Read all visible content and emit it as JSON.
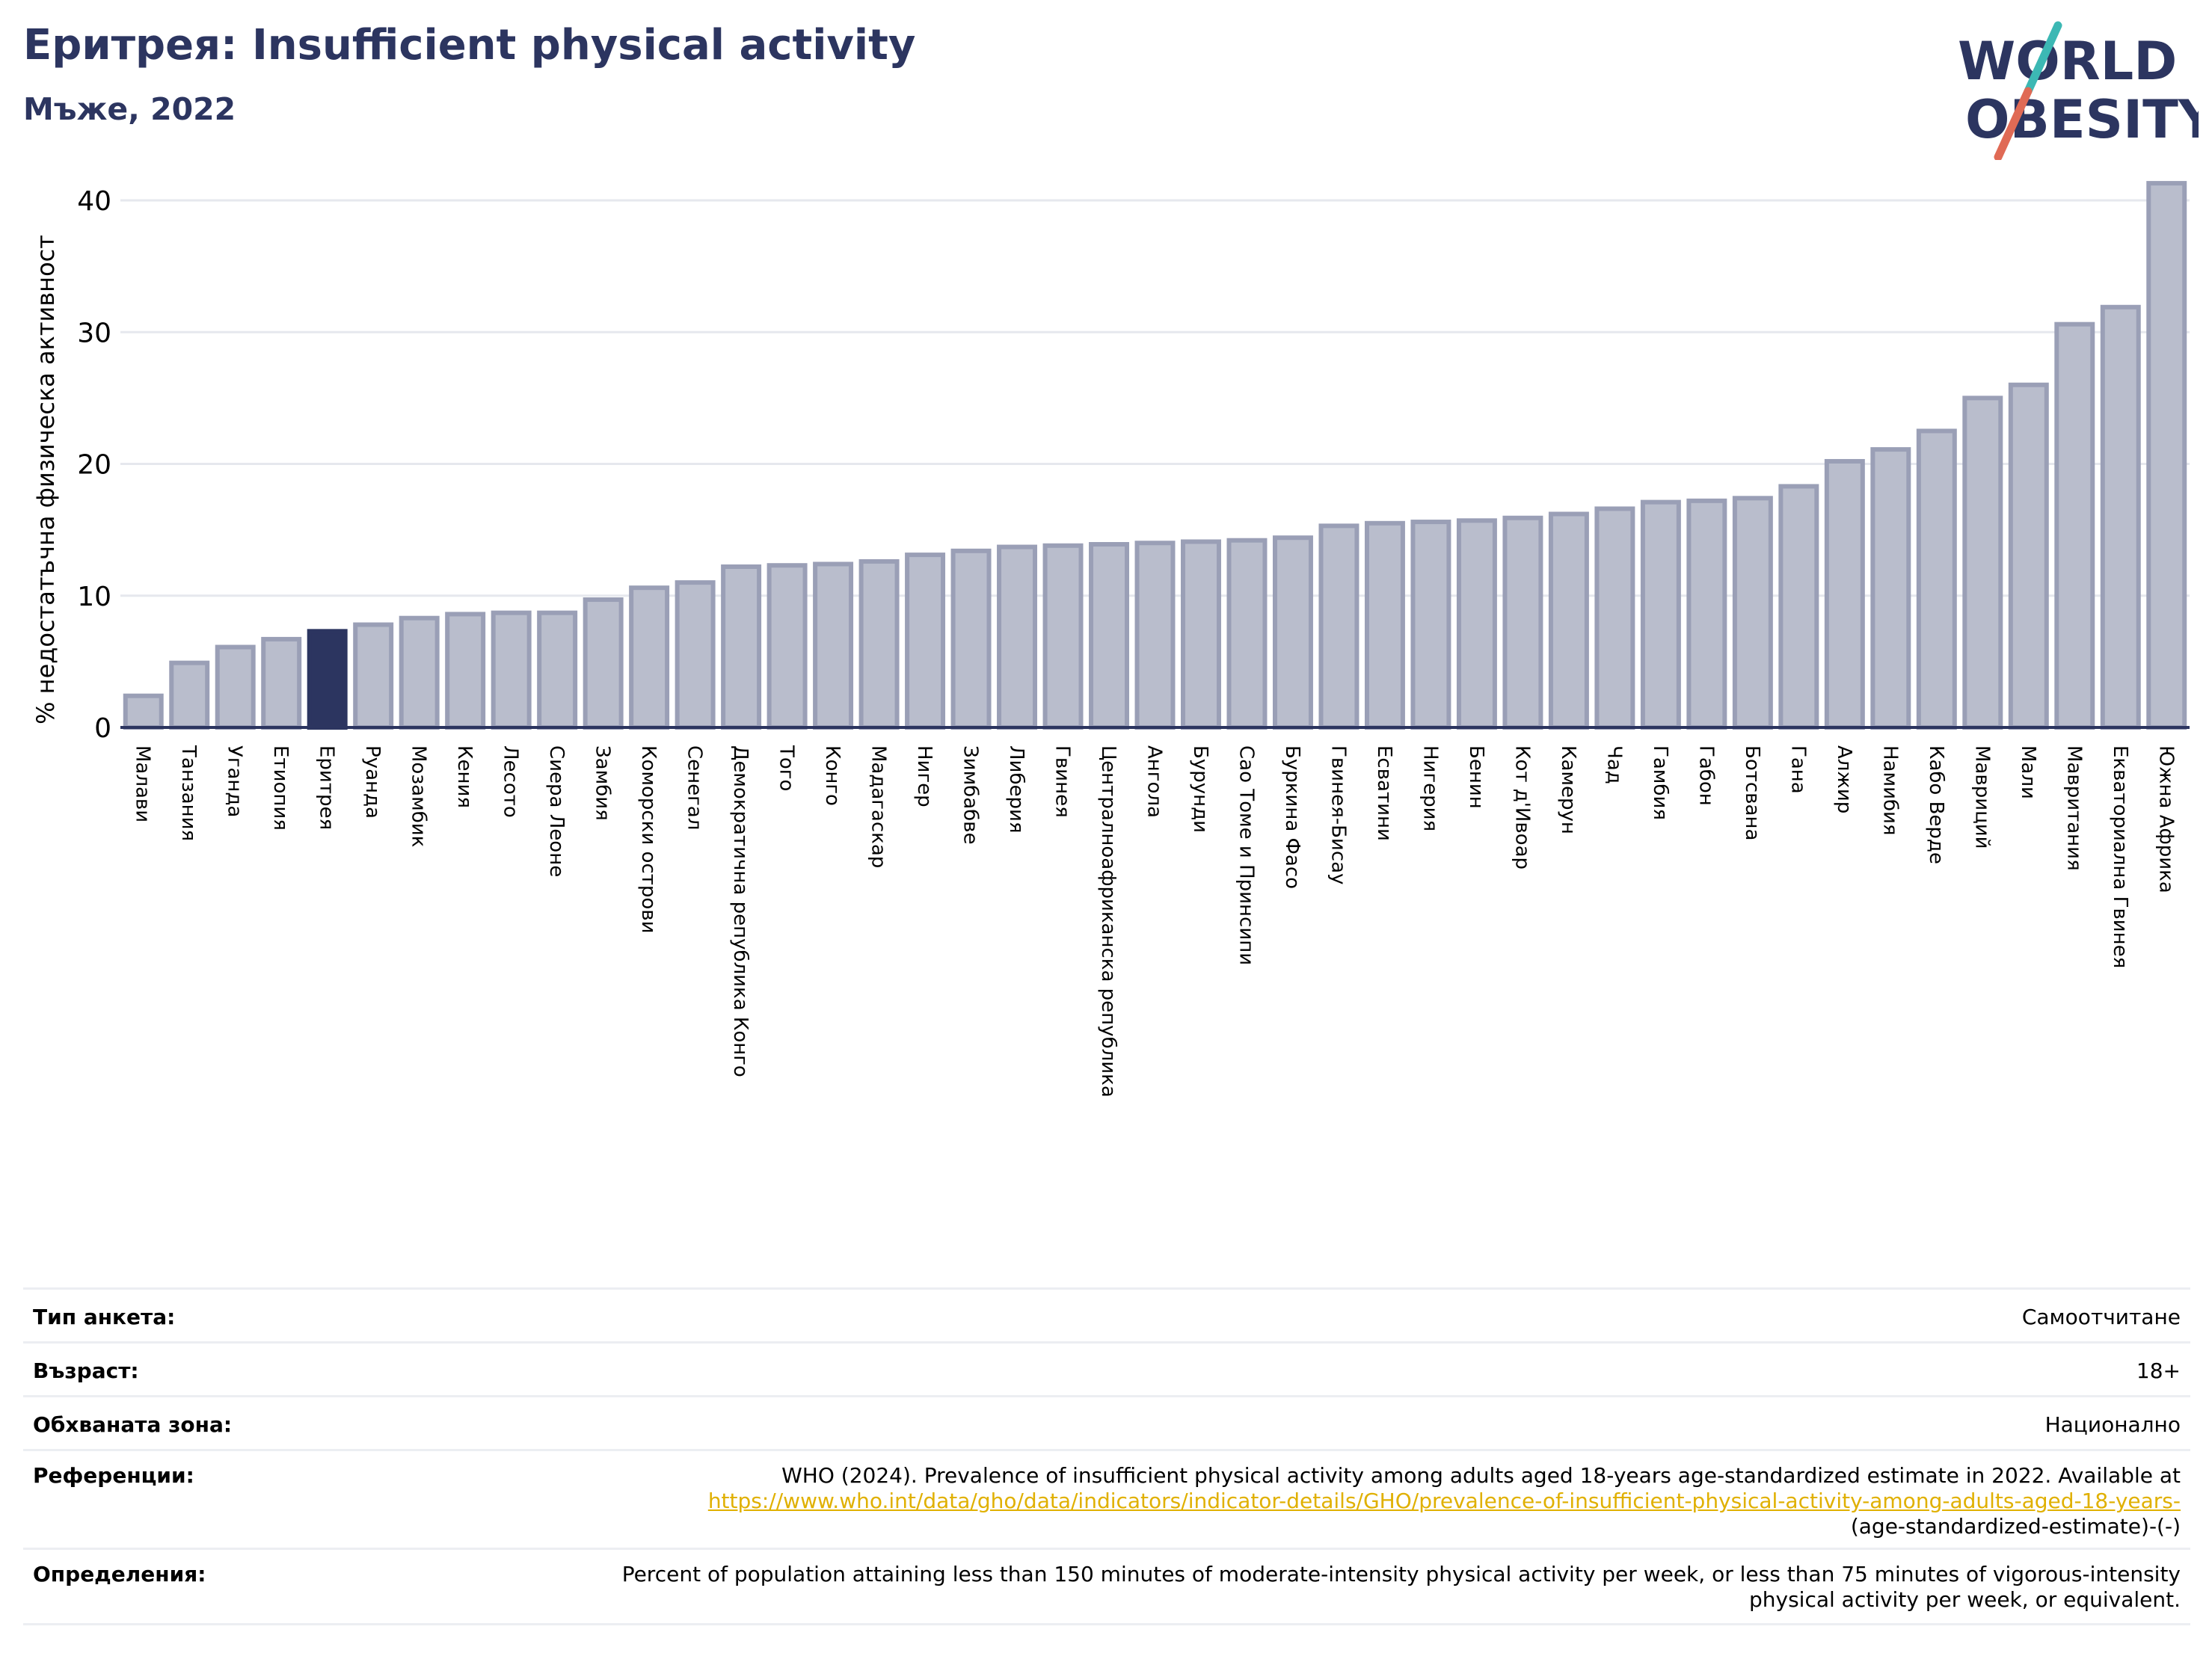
{
  "header": {
    "title": "Еритрея: Insufficient physical activity",
    "subtitle": "Мъже, 2022"
  },
  "logo": {
    "text_top": "WORLD",
    "text_bottom": "OBESITY",
    "accent_colors": [
      "#3cb8b4",
      "#e06a55"
    ]
  },
  "colors": {
    "bar": "#b9bdcc",
    "bar_edge": "#9a9fb6",
    "highlight": "#2c3560",
    "axis": "#2c3560",
    "grid": "#e6e8ee"
  },
  "chart_data": {
    "type": "bar",
    "title": "Еритрея: Insufficient physical activity",
    "subtitle": "Мъже, 2022",
    "xlabel": "",
    "ylabel": "% недостатъчна физическа активност",
    "ylim": [
      0,
      42
    ],
    "yticks": [
      0,
      10,
      20,
      30,
      40
    ],
    "grid": true,
    "highlight": "Еритрея",
    "categories": [
      "Малави",
      "Танзания",
      "Уганда",
      "Етиопия",
      "Еритрея",
      "Руанда",
      "Мозамбик",
      "Кения",
      "Лесото",
      "Сиера Леоне",
      "Замбия",
      "Коморски острови",
      "Сенегал",
      "Демократична република Конго",
      "Того",
      "Конго",
      "Мадагаскар",
      "Нигер",
      "Зимбабве",
      "Либерия",
      "Гвинея",
      "Централноафриканска република",
      "Ангола",
      "Бурунди",
      "Сао Томе и Принсипи",
      "Буркина Фасо",
      "Гвинея-Бисау",
      "Есватини",
      "Нигерия",
      "Бенин",
      "Кот д'Ивоар",
      "Камерун",
      "Чад",
      "Гамбия",
      "Габон",
      "Ботсвана",
      "Гана",
      "Алжир",
      "Намибия",
      "Кабо Верде",
      "Мавриций",
      "Мали",
      "Мавритания",
      "Екваториална Гвинея",
      "Южна Африка"
    ],
    "values": [
      2.4,
      4.9,
      6.1,
      6.7,
      7.3,
      7.8,
      8.3,
      8.6,
      8.7,
      8.7,
      9.7,
      10.6,
      11.0,
      12.2,
      12.3,
      12.4,
      12.6,
      13.1,
      13.4,
      13.7,
      13.8,
      13.9,
      14.0,
      14.1,
      14.2,
      14.4,
      15.3,
      15.5,
      15.6,
      15.7,
      15.9,
      16.2,
      16.6,
      17.1,
      17.2,
      17.4,
      18.3,
      20.2,
      21.1,
      22.5,
      25.0,
      26.0,
      30.6,
      31.9,
      41.3
    ]
  },
  "info": [
    {
      "label": "Тип анкета:",
      "value": "Самоотчитане"
    },
    {
      "label": "Възраст:",
      "value": "18+"
    },
    {
      "label": "Обхваната зона:",
      "value": "Национално"
    },
    {
      "label": "Референции:",
      "value": "WHO (2024). Prevalence of insufficient physical activity among adults aged 18-years age-standardized estimate in 2022. Available at",
      "link": "https://www.who.int/data/gho/data/indicators/indicator-details/GHO/prevalence-of-insufficient-physical-activity-among-adults-aged-18-years-",
      "value_suffix": "(age-standardized-estimate)-(-)"
    },
    {
      "label": "Определения:",
      "value": "Percent of population attaining less than 150 minutes of moderate-intensity physical activity per week, or less than 75 minutes of vigorous-intensity physical activity per week, or equivalent."
    }
  ]
}
